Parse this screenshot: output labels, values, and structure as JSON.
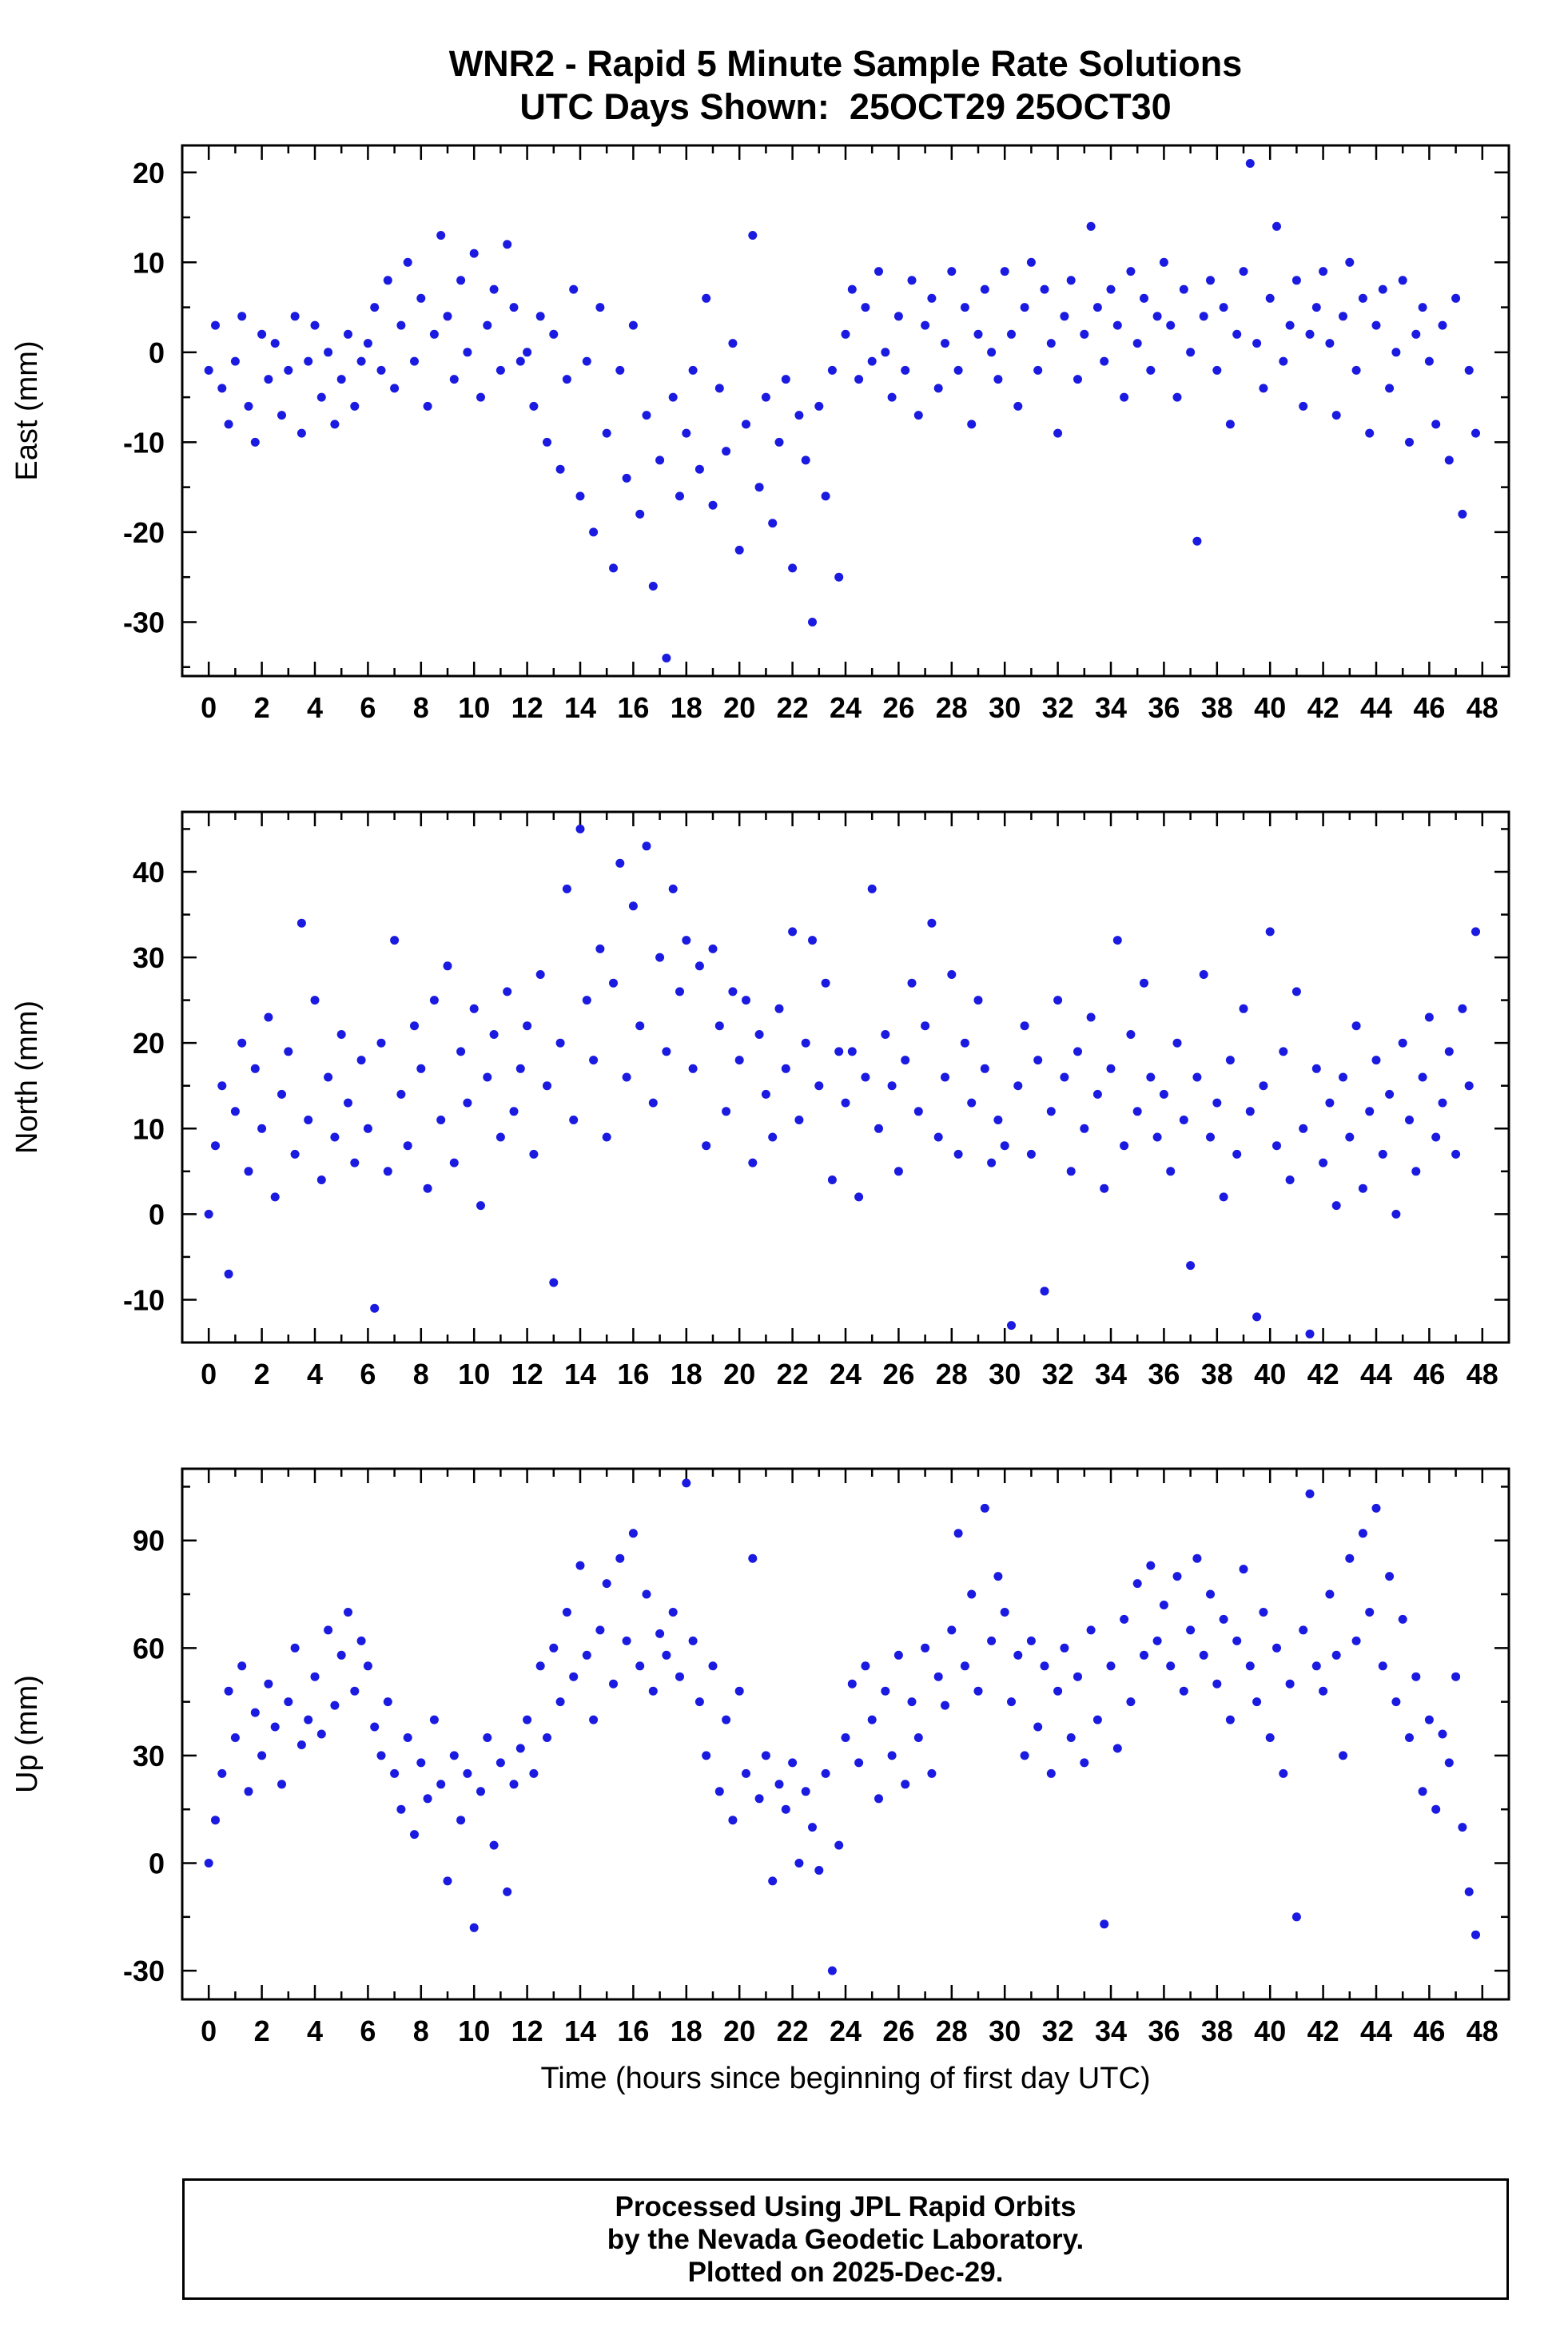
{
  "title": {
    "line1": "WNR2 - Rapid 5 Minute Sample Rate Solutions",
    "line2": "UTC Days Shown:  25OCT29 25OCT30"
  },
  "x_axis_title": "Time (hours since beginning of first day UTC)",
  "footer": {
    "line1": "Processed Using JPL Rapid Orbits",
    "line2": "by the Nevada Geodetic Laboratory.",
    "line3": "Plotted on 2025-Dec-29."
  },
  "style": {
    "point_color": "#1a1ae0",
    "axis_color": "#000000",
    "background": "#ffffff"
  },
  "xticks": [
    0,
    2,
    4,
    6,
    8,
    10,
    12,
    14,
    16,
    18,
    20,
    22,
    24,
    26,
    28,
    30,
    32,
    34,
    36,
    38,
    40,
    42,
    44,
    46,
    48
  ],
  "xminors": [
    1,
    3,
    5,
    7,
    9,
    11,
    13,
    15,
    17,
    19,
    21,
    23,
    25,
    27,
    29,
    31,
    33,
    35,
    37,
    39,
    41,
    43,
    45,
    47
  ],
  "chart_data": [
    {
      "type": "scatter",
      "name": "east",
      "ylabel": "East (mm)",
      "xlim": [
        -1,
        49
      ],
      "ylim": [
        -36,
        23
      ],
      "yticks": [
        -30,
        -20,
        -10,
        0,
        10,
        20
      ],
      "x_start": 0,
      "x_step": 0.25,
      "grid": false,
      "legend": "none",
      "values": [
        -2,
        3,
        -4,
        -8,
        -1,
        4,
        -6,
        -10,
        2,
        -3,
        1,
        -7,
        -2,
        4,
        -9,
        -1,
        3,
        -5,
        0,
        -8,
        -3,
        2,
        -6,
        -1,
        1,
        5,
        -2,
        8,
        -4,
        3,
        10,
        -1,
        6,
        -6,
        2,
        13,
        4,
        -3,
        8,
        0,
        11,
        -5,
        3,
        7,
        -2,
        12,
        5,
        -1,
        0,
        -6,
        4,
        -10,
        2,
        -13,
        -3,
        7,
        -16,
        -1,
        -20,
        5,
        -9,
        -24,
        -2,
        -14,
        3,
        -18,
        -7,
        -26,
        -12,
        -34,
        -5,
        -16,
        -9,
        -2,
        -13,
        6,
        -17,
        -4,
        -11,
        1,
        -22,
        -8,
        13,
        -15,
        -5,
        -19,
        -10,
        -3,
        -24,
        -7,
        -12,
        -30,
        -6,
        -16,
        -2,
        -25,
        2,
        7,
        -3,
        5,
        -1,
        9,
        0,
        -5,
        4,
        -2,
        8,
        -7,
        3,
        6,
        -4,
        1,
        9,
        -2,
        5,
        -8,
        2,
        7,
        0,
        -3,
        9,
        2,
        -6,
        5,
        10,
        -2,
        7,
        1,
        -9,
        4,
        8,
        -3,
        2,
        14,
        5,
        -1,
        7,
        3,
        -5,
        9,
        1,
        6,
        -2,
        4,
        10,
        3,
        -5,
        7,
        0,
        -21,
        4,
        8,
        -2,
        5,
        -8,
        2,
        9,
        21,
        1,
        -4,
        6,
        14,
        -1,
        3,
        8,
        -6,
        2,
        5,
        9,
        1,
        -7,
        4,
        10,
        -2,
        6,
        -9,
        3,
        7,
        -4,
        0,
        8,
        -10,
        2,
        5,
        -1,
        -8,
        3,
        -12,
        6,
        -18,
        -2,
        -9
      ]
    },
    {
      "type": "scatter",
      "name": "north",
      "ylabel": "North (mm)",
      "xlim": [
        -1,
        49
      ],
      "ylim": [
        -15,
        47
      ],
      "yticks": [
        -10,
        0,
        10,
        20,
        30,
        40
      ],
      "x_start": 0,
      "x_step": 0.25,
      "grid": false,
      "legend": "none",
      "values": [
        0,
        8,
        15,
        -7,
        12,
        20,
        5,
        17,
        10,
        23,
        2,
        14,
        19,
        7,
        34,
        11,
        25,
        4,
        16,
        9,
        21,
        13,
        6,
        18,
        10,
        -11,
        20,
        5,
        32,
        14,
        8,
        22,
        17,
        3,
        25,
        11,
        29,
        6,
        19,
        13,
        24,
        1,
        16,
        21,
        9,
        26,
        12,
        17,
        22,
        7,
        28,
        15,
        -8,
        20,
        38,
        11,
        45,
        25,
        18,
        31,
        9,
        27,
        41,
        16,
        36,
        22,
        43,
        13,
        30,
        19,
        38,
        26,
        32,
        17,
        29,
        8,
        31,
        22,
        12,
        26,
        18,
        25,
        6,
        21,
        14,
        9,
        24,
        17,
        33,
        11,
        20,
        32,
        15,
        27,
        4,
        19,
        13,
        19,
        2,
        16,
        38,
        10,
        21,
        15,
        5,
        18,
        27,
        12,
        22,
        34,
        9,
        16,
        28,
        7,
        20,
        13,
        25,
        17,
        6,
        11,
        8,
        -13,
        15,
        22,
        7,
        18,
        -9,
        12,
        25,
        16,
        5,
        19,
        10,
        23,
        14,
        3,
        17,
        32,
        8,
        21,
        12,
        27,
        16,
        9,
        14,
        5,
        20,
        11,
        -6,
        16,
        28,
        9,
        13,
        2,
        18,
        7,
        24,
        12,
        -12,
        15,
        33,
        8,
        19,
        4,
        26,
        10,
        -14,
        17,
        6,
        13,
        1,
        16,
        9,
        22,
        3,
        12,
        18,
        7,
        14,
        0,
        20,
        11,
        5,
        16,
        23,
        9,
        13,
        19,
        7,
        24,
        15,
        33
      ]
    },
    {
      "type": "scatter",
      "name": "up",
      "ylabel": "Up (mm)",
      "xlim": [
        -1,
        49
      ],
      "ylim": [
        -38,
        110
      ],
      "yticks": [
        -30,
        0,
        30,
        60,
        90
      ],
      "x_start": 0,
      "x_step": 0.25,
      "grid": false,
      "legend": "none",
      "values": [
        0,
        12,
        25,
        48,
        35,
        55,
        20,
        42,
        30,
        50,
        38,
        22,
        45,
        60,
        33,
        40,
        52,
        36,
        65,
        44,
        58,
        70,
        48,
        62,
        55,
        38,
        30,
        45,
        25,
        15,
        35,
        8,
        28,
        18,
        40,
        22,
        -5,
        30,
        12,
        25,
        -18,
        20,
        35,
        5,
        28,
        -8,
        22,
        32,
        40,
        25,
        55,
        35,
        60,
        45,
        70,
        52,
        83,
        58,
        40,
        65,
        78,
        50,
        85,
        62,
        92,
        55,
        75,
        48,
        64,
        58,
        70,
        52,
        106,
        62,
        45,
        30,
        55,
        20,
        40,
        12,
        48,
        25,
        85,
        18,
        30,
        -5,
        22,
        15,
        28,
        0,
        20,
        10,
        -2,
        25,
        -30,
        5,
        35,
        50,
        28,
        55,
        40,
        18,
        48,
        30,
        58,
        22,
        45,
        35,
        60,
        25,
        52,
        44,
        65,
        92,
        55,
        75,
        48,
        99,
        62,
        80,
        70,
        45,
        58,
        30,
        62,
        38,
        55,
        25,
        48,
        60,
        35,
        52,
        28,
        65,
        40,
        -17,
        55,
        32,
        68,
        45,
        78,
        58,
        83,
        62,
        72,
        55,
        80,
        48,
        65,
        85,
        58,
        75,
        50,
        68,
        40,
        62,
        82,
        55,
        45,
        70,
        35,
        60,
        25,
        50,
        -15,
        65,
        103,
        55,
        48,
        75,
        58,
        30,
        85,
        62,
        92,
        70,
        99,
        55,
        80,
        45,
        68,
        35,
        52,
        20,
        40,
        15,
        36,
        28,
        52,
        10,
        -8,
        -20
      ]
    }
  ]
}
